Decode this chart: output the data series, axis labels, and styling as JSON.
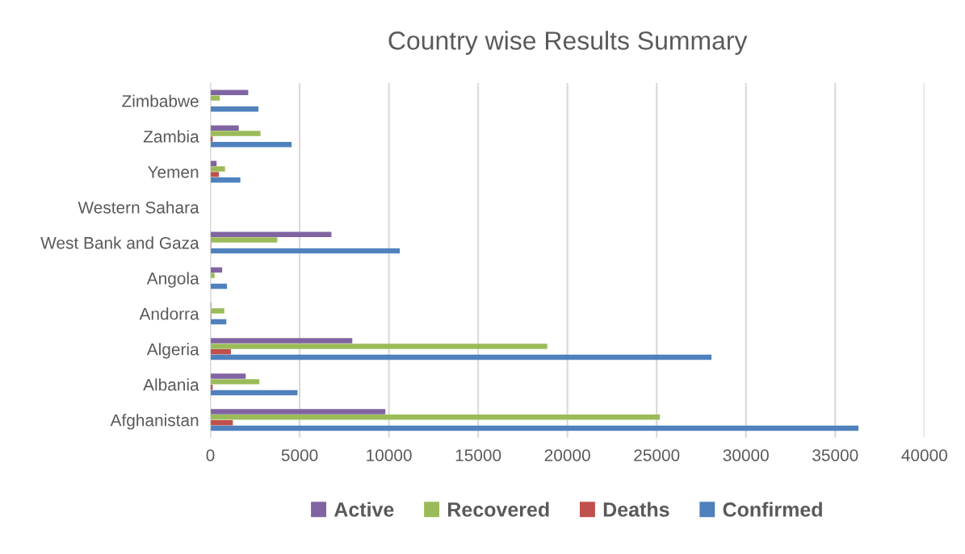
{
  "chart_data": {
    "type": "bar",
    "orientation": "horizontal",
    "title": "Country wise Results Summary",
    "categories": [
      "Zimbabwe",
      "Zambia",
      "Yemen",
      "Western Sahara",
      "West Bank and Gaza",
      "Angola",
      "Andorra",
      "Algeria",
      "Albania",
      "Afghanistan"
    ],
    "series": [
      {
        "name": "Active",
        "color": "#8064a2",
        "values": [
          2120,
          1590,
          350,
          0,
          6780,
          660,
          50,
          7950,
          1980,
          9800
        ]
      },
      {
        "name": "Recovered",
        "color": "#9bbb59",
        "values": [
          530,
          2810,
          820,
          0,
          3750,
          235,
          780,
          18870,
          2740,
          25180
        ]
      },
      {
        "name": "Deaths",
        "color": "#c0504d",
        "values": [
          0,
          130,
          475,
          0,
          50,
          0,
          50,
          1150,
          130,
          1260
        ]
      },
      {
        "name": "Confirmed",
        "color": "#4f81bd",
        "values": [
          2690,
          4550,
          1680,
          0,
          10610,
          930,
          895,
          28070,
          4880,
          36300
        ]
      }
    ],
    "xlim": [
      0,
      40000
    ],
    "xticks": [
      0,
      5000,
      10000,
      15000,
      20000,
      25000,
      30000,
      35000,
      40000
    ],
    "grid": "x",
    "legend": "bottom"
  }
}
